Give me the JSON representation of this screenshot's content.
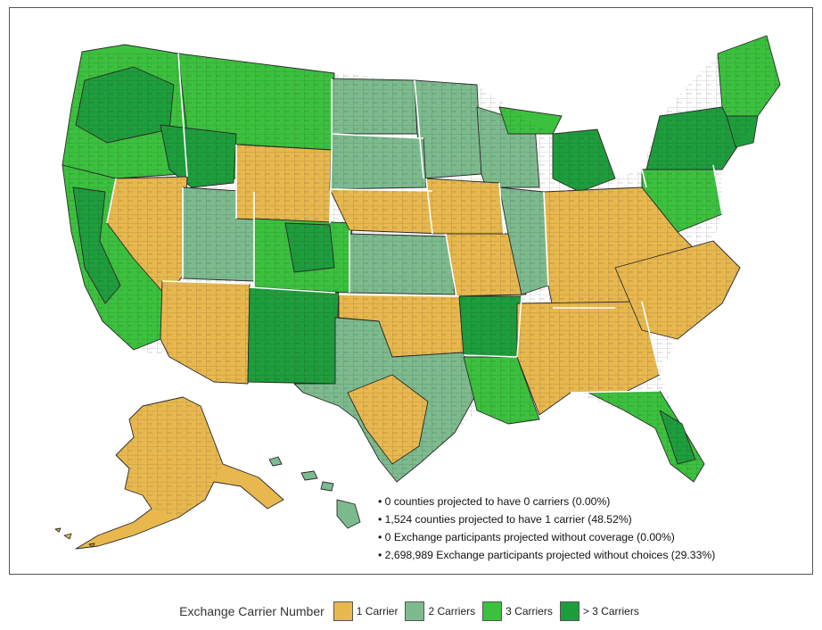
{
  "legend": {
    "title": "Exchange Carrier Number",
    "items": [
      {
        "label": "1 Carrier",
        "color": "#E8B84F"
      },
      {
        "label": "2 Carriers",
        "color": "#7DBB8E"
      },
      {
        "label": "3 Carriers",
        "color": "#3CC13E"
      },
      {
        "label": "> 3 Carriers",
        "color": "#1E9D3C"
      }
    ]
  },
  "stats": [
    "0 counties projected to have 0 carriers (0.00%)",
    "1,524 counties projected to have 1 carrier (48.52%)",
    "0 Exchange participants projected without coverage (0.00%)",
    "2,698,989 Exchange participants projected without choices (29.33%)"
  ],
  "regions": {
    "alaska": "1 Carrier",
    "hawaii": "2 Carriers"
  }
}
